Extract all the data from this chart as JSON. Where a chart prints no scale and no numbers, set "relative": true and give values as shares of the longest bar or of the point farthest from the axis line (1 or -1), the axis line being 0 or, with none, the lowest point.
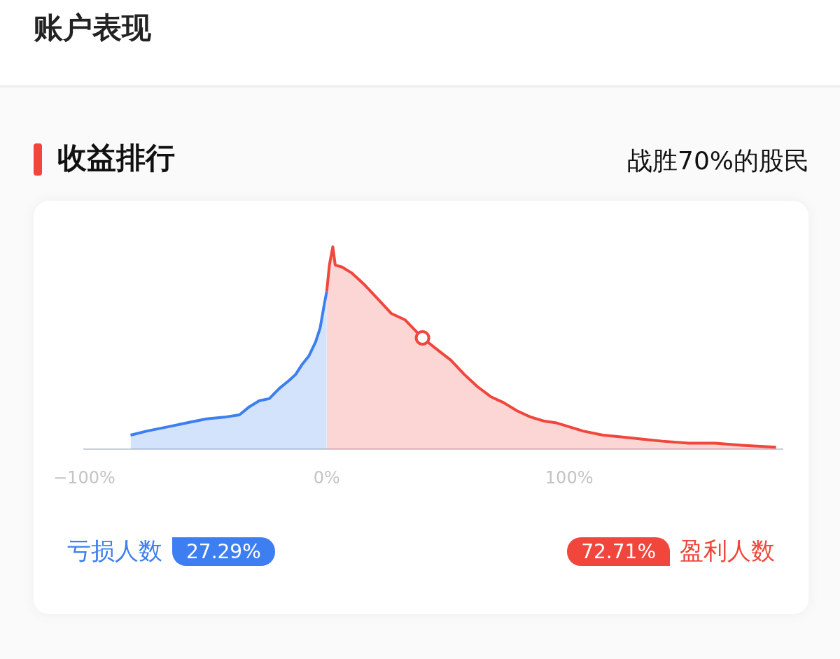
{
  "chart_data": {
    "type": "area",
    "title": "账户表现",
    "subtitle": "收益排行",
    "annotations": [
      "战胜70%的股民",
      "27.29%",
      "72.71%"
    ],
    "relative": true,
    "xlim": [
      -100,
      188
    ],
    "xticks": [
      {
        "value": -100,
        "label": "−100%"
      },
      {
        "value": 0,
        "label": "0%"
      },
      {
        "value": 100,
        "label": "100%"
      }
    ],
    "grid": false,
    "legend": "bottom",
    "series": [
      {
        "name": "亏损人数",
        "color": "#3d7ff0",
        "x": [
          -80.9,
          -74.1,
          -65.9,
          -57.8,
          -49.6,
          -41.4,
          -36,
          -31.9,
          -27.8,
          -23.7,
          -19.6,
          -15.5,
          -12.8,
          -10.1,
          -7.4,
          -4.6,
          -2.7,
          -1.1,
          0
        ],
        "values": [
          0.07,
          0.09,
          0.11,
          0.13,
          0.15,
          0.16,
          0.17,
          0.21,
          0.24,
          0.25,
          0.3,
          0.34,
          0.37,
          0.42,
          0.46,
          0.53,
          0.6,
          0.71,
          0.78
        ]
      },
      {
        "name": "盈利人数",
        "color": "#f0463c",
        "x": [
          0,
          1.1,
          2.5,
          3.5,
          6.3,
          10.4,
          15.8,
          21.3,
          26.7,
          32.2,
          39.5,
          45.8,
          51.2,
          56.7,
          62.1,
          67.6,
          73,
          78.5,
          83.9,
          89.4,
          94.8,
          100.3,
          105.7,
          113.9,
          122.1,
          130.2,
          138.4,
          149.3,
          160.2,
          171.1,
          185.3
        ],
        "values": [
          0.78,
          0.91,
          1,
          0.91,
          0.9,
          0.87,
          0.81,
          0.74,
          0.67,
          0.64,
          0.55,
          0.49,
          0.44,
          0.37,
          0.31,
          0.26,
          0.23,
          0.19,
          0.16,
          0.14,
          0.13,
          0.11,
          0.09,
          0.07,
          0.06,
          0.05,
          0.04,
          0.03,
          0.03,
          0.02,
          0.01
        ]
      },
      {
        "type": "scatter",
        "color": "#f0463c",
        "marker": "circle",
        "x": [
          39.5
        ],
        "values": [
          0.55
        ]
      }
    ]
  }
}
